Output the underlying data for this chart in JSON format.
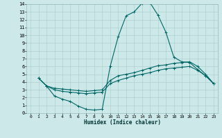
{
  "xlabel": "Humidex (Indice chaleur)",
  "bg_color": "#cce8e8",
  "grid_color": "#b0d0d0",
  "line_color": "#006666",
  "xlim": [
    -0.5,
    23.5
  ],
  "ylim": [
    0,
    14
  ],
  "xticks": [
    0,
    1,
    2,
    3,
    4,
    5,
    6,
    7,
    8,
    9,
    10,
    11,
    12,
    13,
    14,
    15,
    16,
    17,
    18,
    19,
    20,
    21,
    22,
    23
  ],
  "yticks": [
    0,
    1,
    2,
    3,
    4,
    5,
    6,
    7,
    8,
    9,
    10,
    11,
    12,
    13,
    14
  ],
  "lines": [
    {
      "x": [
        1,
        2,
        3,
        4,
        5,
        6,
        7,
        8,
        9,
        10,
        11,
        12,
        13,
        14,
        15,
        16,
        17,
        18,
        19,
        20,
        21,
        22,
        23
      ],
      "y": [
        4.5,
        3.5,
        2.2,
        1.8,
        1.5,
        0.9,
        0.5,
        0.4,
        0.5,
        6.0,
        9.8,
        12.5,
        13.0,
        14.1,
        14.2,
        12.6,
        10.4,
        7.2,
        6.6,
        6.5,
        5.6,
        4.8,
        3.8
      ]
    },
    {
      "x": [
        1,
        2,
        3,
        4,
        5,
        6,
        7,
        8,
        9,
        10,
        11,
        12,
        13,
        14,
        15,
        16,
        17,
        18,
        19,
        20,
        21,
        22,
        23
      ],
      "y": [
        4.5,
        3.5,
        3.2,
        3.1,
        3.0,
        2.9,
        2.8,
        2.9,
        3.0,
        4.2,
        4.8,
        5.0,
        5.2,
        5.5,
        5.8,
        6.1,
        6.2,
        6.4,
        6.5,
        6.6,
        6.0,
        5.0,
        3.8
      ]
    },
    {
      "x": [
        1,
        2,
        3,
        4,
        5,
        6,
        7,
        8,
        9,
        10,
        11,
        12,
        13,
        14,
        15,
        16,
        17,
        18,
        19,
        20,
        21,
        22,
        23
      ],
      "y": [
        4.5,
        3.5,
        3.0,
        2.8,
        2.7,
        2.6,
        2.5,
        2.6,
        2.7,
        3.8,
        4.2,
        4.5,
        4.8,
        5.0,
        5.2,
        5.5,
        5.7,
        5.8,
        5.9,
        6.0,
        5.5,
        4.8,
        3.8
      ]
    }
  ]
}
